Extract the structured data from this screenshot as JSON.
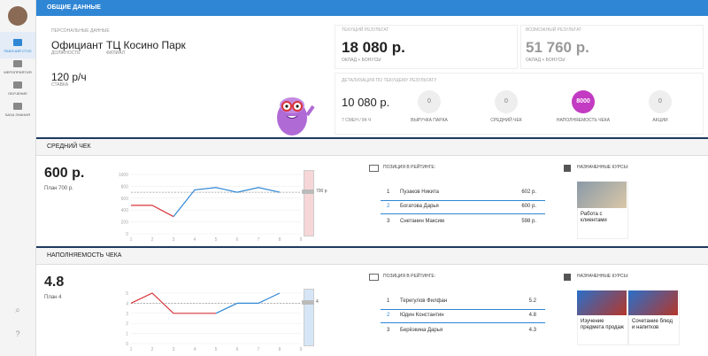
{
  "sidebar": {
    "items": [
      "РАБОЧИЙ СТОЛ",
      "МЕРОПРИЯТИЯ",
      "ОБУЧЕНИЕ",
      "БАЗА ЗНАНИЯ"
    ]
  },
  "general": {
    "title": "ОБЩИЕ ДАННЫЕ",
    "personal": {
      "heading": "ПЕРСОНАЛЬНЫЕ ДАННЫЕ",
      "position": "Официант",
      "position_label": "ДОЛЖНОСТЬ",
      "branch": "ТЦ Косино Парк",
      "branch_label": "ФИЛИАЛ",
      "rate": "120 р/ч",
      "rate_label": "СТАВКА"
    },
    "current": {
      "heading": "ТЕКУЩИЙ РЕЗУЛЬТАТ",
      "value": "18 080 р.",
      "note": "ОКЛАД + БОНУСЫ"
    },
    "possible": {
      "heading": "ВОЗМОЖНЫЙ РЕЗУЛЬТАТ",
      "value": "51 760 р.",
      "note": "ОКЛАД + БОНУСЫ"
    },
    "detail": {
      "heading": "ДЕТАЛИЗАЦИЯ ПО ТЕКУЩЕМУ РЕЗУЛЬТАТУ",
      "value": "10 080 р.",
      "shifts": "7 СМЕН / 84 Ч",
      "metrics": [
        {
          "value": "0",
          "label": "ВЫРУЧКА ПАРКА"
        },
        {
          "value": "0",
          "label": "СРЕДНИЙ ЧЕК"
        },
        {
          "value": "8000",
          "label": "НАПОЛНЯЕМОСТЬ ЧЕКА",
          "active": true
        },
        {
          "value": "0",
          "label": "АКЦИИ"
        }
      ]
    }
  },
  "sections": [
    {
      "title": "СРЕДНИЙ ЧЕК",
      "value": "600 р.",
      "plan_text": "План 700 р.",
      "gauge_label": "700 р",
      "gauge_color": "#f7d6d8",
      "chart": {
        "type": "line",
        "x": [
          1,
          2,
          3,
          4,
          5,
          6,
          7,
          8,
          9
        ],
        "xlim": [
          1,
          9
        ],
        "ylim": [
          0,
          1000
        ],
        "yticks": [
          0,
          200,
          400,
          600,
          800,
          1000
        ],
        "plan": 700,
        "series": [
          {
            "color": "#d9343a",
            "values": [
              480,
              480,
              290,
              null,
              null,
              null,
              null,
              null,
              null
            ]
          },
          {
            "color": "#2f86d4",
            "values": [
              null,
              null,
              290,
              740,
              780,
              700,
              780,
              700,
              null
            ]
          }
        ]
      },
      "rating": {
        "heading": "ПОЗИЦИЯ В РЕЙТИНГЕ:",
        "highlight": 1,
        "rows": [
          [
            "1",
            "Пузаков Никита",
            "602 р."
          ],
          [
            "2",
            "Богатова Дарья",
            "600 р."
          ],
          [
            "3",
            "Снетанин Максим",
            "598 р."
          ]
        ]
      },
      "courses": {
        "heading": "НАЗНАЧЕННЫЕ КУРСЫ:",
        "items": [
          "Работа с клиентами"
        ]
      }
    },
    {
      "title": "НАПОЛНЯЕМОСТЬ ЧЕКА",
      "value": "4.8",
      "plan_text": "План 4",
      "gauge_label": "4",
      "gauge_color": "#d6e6f7",
      "chart": {
        "type": "line",
        "x": [
          1,
          2,
          3,
          4,
          5,
          6,
          7,
          8,
          9
        ],
        "xlim": [
          1,
          9
        ],
        "ylim": [
          0,
          5
        ],
        "yticks": [
          0,
          1,
          2,
          3,
          4,
          5
        ],
        "plan": 4,
        "series": [
          {
            "color": "#d9343a",
            "values": [
              4,
              5,
              3,
              3,
              3,
              null,
              null,
              null,
              null
            ]
          },
          {
            "color": "#2f86d4",
            "values": [
              null,
              null,
              null,
              null,
              3,
              4,
              4,
              5,
              null
            ]
          }
        ]
      },
      "rating": {
        "heading": "ПОЗИЦИЯ В РЕЙТИНГЕ:",
        "highlight": 1,
        "rows": [
          [
            "1",
            "Терегулов Филфан",
            "5.2"
          ],
          [
            "2",
            "Юдин Константин",
            "4.8"
          ],
          [
            "3",
            "Берёзкина Дарья",
            "4.3"
          ]
        ]
      },
      "courses": {
        "heading": "НАЗНАЧЕННЫЕ КУРСЫ:",
        "items": [
          "Изучение предмета продаж",
          "Сочетание блюд и напитков"
        ]
      }
    }
  ]
}
